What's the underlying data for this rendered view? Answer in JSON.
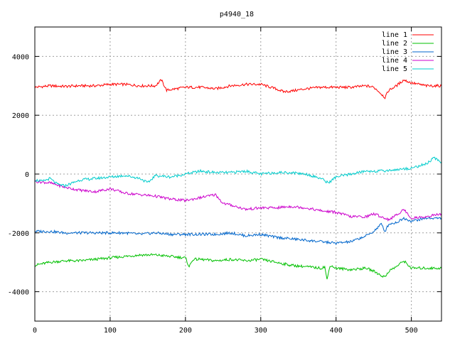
{
  "chart_data": {
    "type": "line",
    "title": "p4940_18",
    "xlabel": "",
    "ylabel": "",
    "xlim": [
      0,
      540
    ],
    "ylim": [
      -5000,
      5000
    ],
    "x_ticks": [
      0,
      100,
      200,
      300,
      400,
      500
    ],
    "y_ticks": [
      -4000,
      -2000,
      0,
      2000,
      4000
    ],
    "grid": true,
    "legend_position": "top-right",
    "series": [
      {
        "name": "line 1",
        "color": "#ff0000",
        "x": [
          0,
          20,
          40,
          60,
          80,
          100,
          120,
          140,
          160,
          168,
          175,
          200,
          220,
          240,
          260,
          280,
          300,
          320,
          330,
          340,
          360,
          380,
          400,
          420,
          440,
          450,
          455,
          465,
          470,
          480,
          490,
          500,
          520,
          540
        ],
        "y": [
          2950,
          3000,
          2980,
          3000,
          3000,
          3050,
          3050,
          3000,
          3000,
          3200,
          2850,
          2950,
          2950,
          2900,
          3000,
          3050,
          3050,
          2900,
          2800,
          2820,
          2900,
          2950,
          2950,
          2950,
          3000,
          2950,
          2850,
          2600,
          2850,
          3000,
          3200,
          3100,
          3000,
          3000
        ]
      },
      {
        "name": "line 2",
        "color": "#00c000",
        "x": [
          0,
          20,
          40,
          60,
          80,
          100,
          120,
          140,
          160,
          180,
          200,
          205,
          210,
          220,
          240,
          260,
          280,
          300,
          320,
          340,
          360,
          380,
          385,
          388,
          392,
          400,
          420,
          440,
          450,
          460,
          465,
          470,
          480,
          490,
          500,
          520,
          540
        ],
        "y": [
          -3100,
          -3000,
          -2950,
          -2950,
          -2900,
          -2850,
          -2800,
          -2750,
          -2750,
          -2800,
          -2850,
          -3150,
          -2900,
          -2900,
          -2950,
          -2900,
          -2950,
          -2900,
          -3000,
          -3100,
          -3150,
          -3200,
          -3150,
          -3600,
          -3100,
          -3200,
          -3250,
          -3200,
          -3300,
          -3450,
          -3500,
          -3300,
          -3150,
          -2950,
          -3200,
          -3200,
          -3200
        ]
      },
      {
        "name": "line 3",
        "color": "#0066cc",
        "x": [
          0,
          20,
          40,
          60,
          80,
          100,
          120,
          140,
          160,
          180,
          200,
          220,
          240,
          260,
          280,
          300,
          320,
          340,
          360,
          380,
          400,
          420,
          440,
          450,
          460,
          465,
          470,
          480,
          490,
          500,
          520,
          540
        ],
        "y": [
          -1950,
          -1950,
          -2000,
          -2000,
          -2000,
          -2000,
          -2000,
          -2050,
          -2000,
          -2050,
          -2050,
          -2050,
          -2050,
          -2000,
          -2100,
          -2050,
          -2150,
          -2200,
          -2250,
          -2300,
          -2350,
          -2300,
          -2100,
          -1950,
          -1700,
          -1950,
          -1700,
          -1650,
          -1500,
          -1600,
          -1500,
          -1500
        ]
      },
      {
        "name": "line 4",
        "color": "#cc00cc",
        "x": [
          0,
          20,
          40,
          60,
          80,
          100,
          120,
          140,
          160,
          180,
          200,
          220,
          240,
          250,
          260,
          280,
          300,
          320,
          340,
          360,
          380,
          400,
          420,
          440,
          450,
          460,
          470,
          480,
          490,
          500,
          520,
          540
        ],
        "y": [
          -250,
          -300,
          -450,
          -550,
          -600,
          -500,
          -650,
          -700,
          -750,
          -850,
          -900,
          -800,
          -700,
          -1000,
          -1050,
          -1200,
          -1150,
          -1150,
          -1100,
          -1150,
          -1250,
          -1300,
          -1450,
          -1450,
          -1350,
          -1450,
          -1550,
          -1400,
          -1200,
          -1500,
          -1450,
          -1350
        ]
      },
      {
        "name": "line 5",
        "color": "#00cccc",
        "x": [
          0,
          10,
          20,
          30,
          40,
          60,
          80,
          100,
          120,
          140,
          150,
          160,
          180,
          200,
          220,
          240,
          260,
          280,
          300,
          320,
          340,
          360,
          380,
          390,
          400,
          420,
          440,
          460,
          480,
          500,
          520,
          530,
          540
        ],
        "y": [
          -200,
          -250,
          -150,
          -350,
          -400,
          -200,
          -150,
          -100,
          -50,
          -150,
          -300,
          -50,
          -100,
          0,
          100,
          50,
          50,
          100,
          0,
          50,
          50,
          0,
          -150,
          -300,
          -100,
          0,
          100,
          100,
          150,
          200,
          350,
          550,
          400
        ]
      }
    ]
  }
}
